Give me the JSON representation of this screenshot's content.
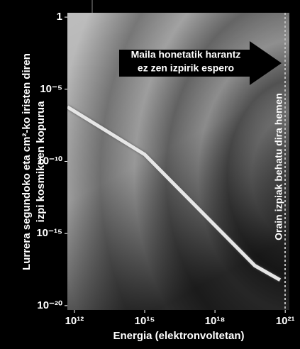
{
  "chart_data": {
    "type": "line",
    "x_label": "Energia (elektronvoltetan)",
    "y_label": [
      "Lurrera segundoko eta cm²-ko iristen diren",
      "izpi kosmikoen kopurua"
    ],
    "x_log": true,
    "y_log": true,
    "xlim": [
      500000000000.0,
      1.5e+21
    ],
    "ylim": [
      5e-21,
      2
    ],
    "xticks": [
      {
        "value": 1000000000000.0,
        "label": "10¹²"
      },
      {
        "value": 1000000000000000.0,
        "label": "10¹⁵"
      },
      {
        "value": 1e+18,
        "label": "10¹⁸"
      },
      {
        "value": 1e+21,
        "label": "10²¹"
      }
    ],
    "yticks": [
      1,
      {
        "value": 1e-05,
        "label": "10⁻⁵"
      },
      {
        "value": 1e-10,
        "label": "10⁻¹⁰"
      },
      {
        "value": 1e-15,
        "label": "10⁻¹⁵"
      },
      {
        "value": 1e-20,
        "label": "10⁻²⁰"
      }
    ],
    "x": [
      500000000000.0,
      1000000000000000.0,
      5e+19,
      6e+20
    ],
    "series": [
      {
        "color": "#e6e6e6",
        "values": [
          6e-07,
          3e-10,
          6e-18,
          6e-19
        ]
      }
    ],
    "annotations": [
      {
        "lines": [
          "Maila honetatik harantz",
          "ez zen izpirik espero"
        ]
      },
      {
        "text": "Orain izpiak behatu dira hemen"
      }
    ]
  }
}
